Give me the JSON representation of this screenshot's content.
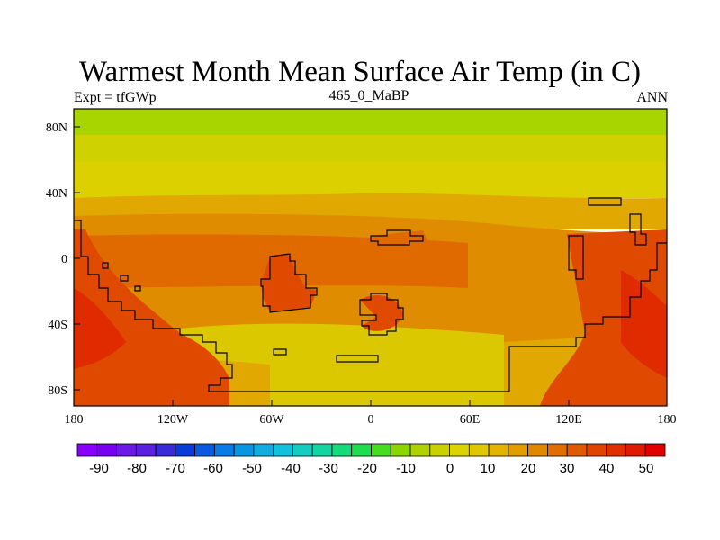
{
  "title": "Warmest Month Mean Surface Air Temp (in C)",
  "subtitle_left": "Expt = tfGWp",
  "subtitle_center": "465_0_MaBP",
  "subtitle_right": "ANN",
  "x_ticks": [
    "180",
    "120W",
    "60W",
    "0",
    "60E",
    "120E",
    "180"
  ],
  "y_ticks": [
    "80N",
    "40N",
    "0",
    "40S",
    "80S"
  ],
  "colorbar": {
    "labels": [
      "-90",
      "-80",
      "-70",
      "-60",
      "-50",
      "-40",
      "-30",
      "-20",
      "-10",
      "0",
      "10",
      "20",
      "30",
      "40",
      "50"
    ],
    "colors": [
      "#8a00ff",
      "#7a00f0",
      "#6a1be6",
      "#5a22e0",
      "#3a2bd8",
      "#0a3ad8",
      "#0a5ae0",
      "#0a7ae6",
      "#0a95e0",
      "#10aee0",
      "#12c2dc",
      "#14cdc0",
      "#14d4a0",
      "#14da7a",
      "#20dc50",
      "#48dc20",
      "#8cd600",
      "#b0d200",
      "#c9d200",
      "#dcd400",
      "#e0c800",
      "#e0b400",
      "#e09c00",
      "#e08800",
      "#e06e00",
      "#e05a00",
      "#e04400",
      "#e03000",
      "#e01c00",
      "#e00000"
    ]
  },
  "map_colors": {
    "band_top": "#a8d400",
    "band_upper": "#cfd200",
    "band_yellow": "#dcd000",
    "band_mid": "#e0a800",
    "band_orange": "#e08c00",
    "band_red_orange": "#e06a00",
    "hot": "#e04a00",
    "hottest": "#e02a00",
    "south_yellow": "#dcc800"
  }
}
